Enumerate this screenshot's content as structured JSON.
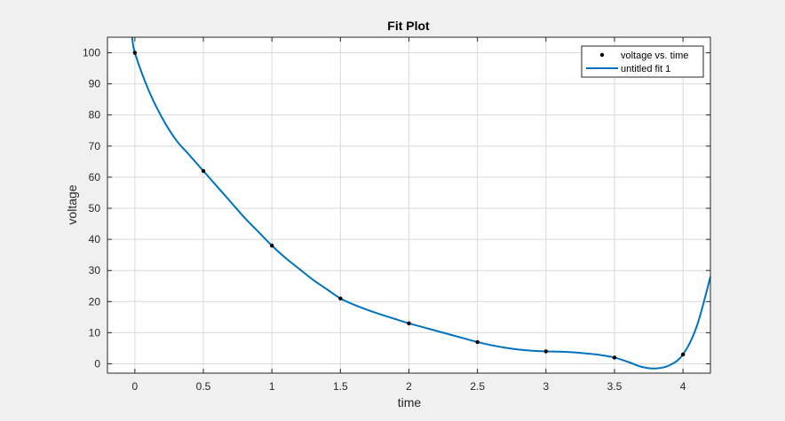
{
  "colors": {
    "figure_background": "#f0f0f0",
    "axes_background": "#ffffff",
    "grid": "#d9d9d9",
    "axis_line": "#262626",
    "fit_line": "#0072bd",
    "data_marker": "#000000"
  },
  "chart_data": {
    "type": "line",
    "title": "Fit Plot",
    "xlabel": "time",
    "ylabel": "voltage",
    "xlim": [
      -0.2,
      4.2
    ],
    "ylim": [
      -3,
      105
    ],
    "xticks": [
      0,
      0.5,
      1,
      1.5,
      2,
      2.5,
      3,
      3.5,
      4
    ],
    "xtick_labels": [
      "0",
      "0.5",
      "1",
      "1.5",
      "2",
      "2.5",
      "3",
      "3.5",
      "4"
    ],
    "yticks": [
      0,
      10,
      20,
      30,
      40,
      50,
      60,
      70,
      80,
      90,
      100
    ],
    "ytick_labels": [
      "0",
      "10",
      "20",
      "30",
      "40",
      "50",
      "60",
      "70",
      "80",
      "90",
      "100"
    ],
    "grid": true,
    "legend_position": "top-right",
    "series": [
      {
        "name": "voltage vs. time",
        "kind": "markers",
        "x": [
          0,
          0.5,
          1,
          1.5,
          2,
          2.5,
          3,
          3.5,
          4
        ],
        "y": [
          100,
          62,
          38,
          21,
          13,
          7,
          4,
          2,
          3
        ]
      },
      {
        "name": "untitled fit 1",
        "kind": "line",
        "x": [
          -0.02,
          0,
          0.1,
          0.2,
          0.3,
          0.4,
          0.5,
          0.6,
          0.7,
          0.8,
          0.9,
          1.0,
          1.1,
          1.2,
          1.3,
          1.4,
          1.5,
          1.6,
          1.7,
          1.8,
          1.9,
          2.0,
          2.1,
          2.2,
          2.3,
          2.4,
          2.5,
          2.6,
          2.7,
          2.8,
          2.9,
          3.0,
          3.1,
          3.2,
          3.3,
          3.4,
          3.5,
          3.6,
          3.7,
          3.8,
          3.9,
          4.0,
          4.1,
          4.2
        ],
        "y": [
          105,
          100,
          88,
          79,
          72,
          67,
          62,
          57,
          52,
          47,
          42.5,
          38,
          34,
          30.5,
          27,
          24,
          21,
          19,
          17.3,
          15.8,
          14.4,
          13,
          11.8,
          10.6,
          9.4,
          8.2,
          7,
          6,
          5.2,
          4.6,
          4.2,
          4,
          3.9,
          3.7,
          3.3,
          2.8,
          2,
          0.6,
          -1,
          -1.5,
          -0.5,
          3,
          12,
          28
        ]
      }
    ]
  }
}
